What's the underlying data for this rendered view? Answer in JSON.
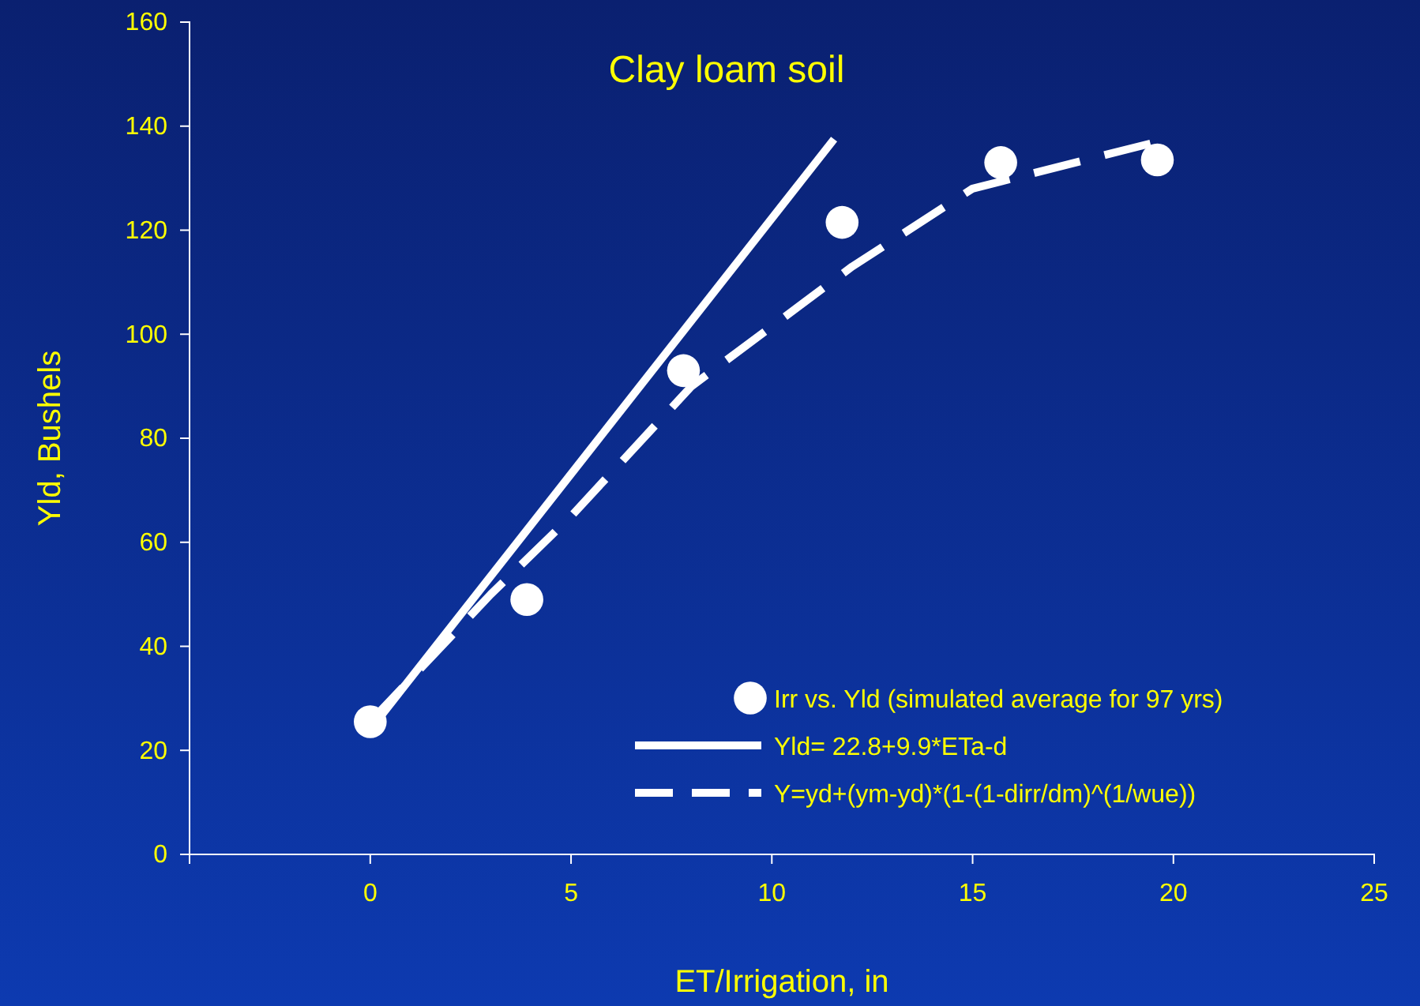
{
  "chart_data": {
    "type": "scatter",
    "title": "Clay loam soil",
    "xlabel": "ET/Irrigation, in",
    "ylabel": "Yld, Bushels",
    "xlim": [
      -4.5,
      25
    ],
    "xticks": [
      0,
      5,
      10,
      15,
      20,
      25
    ],
    "ylim": [
      0,
      160
    ],
    "yticks": [
      0,
      20,
      40,
      60,
      80,
      100,
      120,
      140,
      160
    ],
    "grid": false,
    "legend": "bottom right",
    "series": [
      {
        "name": "Irr vs. Yld (simulated average for 97 yrs)",
        "marker": "circle",
        "color": "#ffffff",
        "x": [
          0,
          3.9,
          7.8,
          11.75,
          15.7,
          19.6
        ],
        "values": [
          25.5,
          49,
          93,
          121.5,
          133,
          133.5
        ]
      },
      {
        "name": "Yld= 22.8+9.9*ETa-d",
        "type": "line",
        "line_style": "solid",
        "color": "#ffffff",
        "x": [
          0,
          11.55
        ],
        "values": [
          24,
          137.5
        ]
      },
      {
        "name": "Y=yd+(ym-yd)*(1-(1-dirr/dm)^(1/wue))",
        "type": "line",
        "line_style": "dashed",
        "color": "#ffffff",
        "x": [
          0,
          3,
          5,
          8,
          12,
          15,
          19.6
        ],
        "values": [
          25.5,
          50,
          65,
          90,
          113,
          128,
          137
        ]
      }
    ]
  }
}
